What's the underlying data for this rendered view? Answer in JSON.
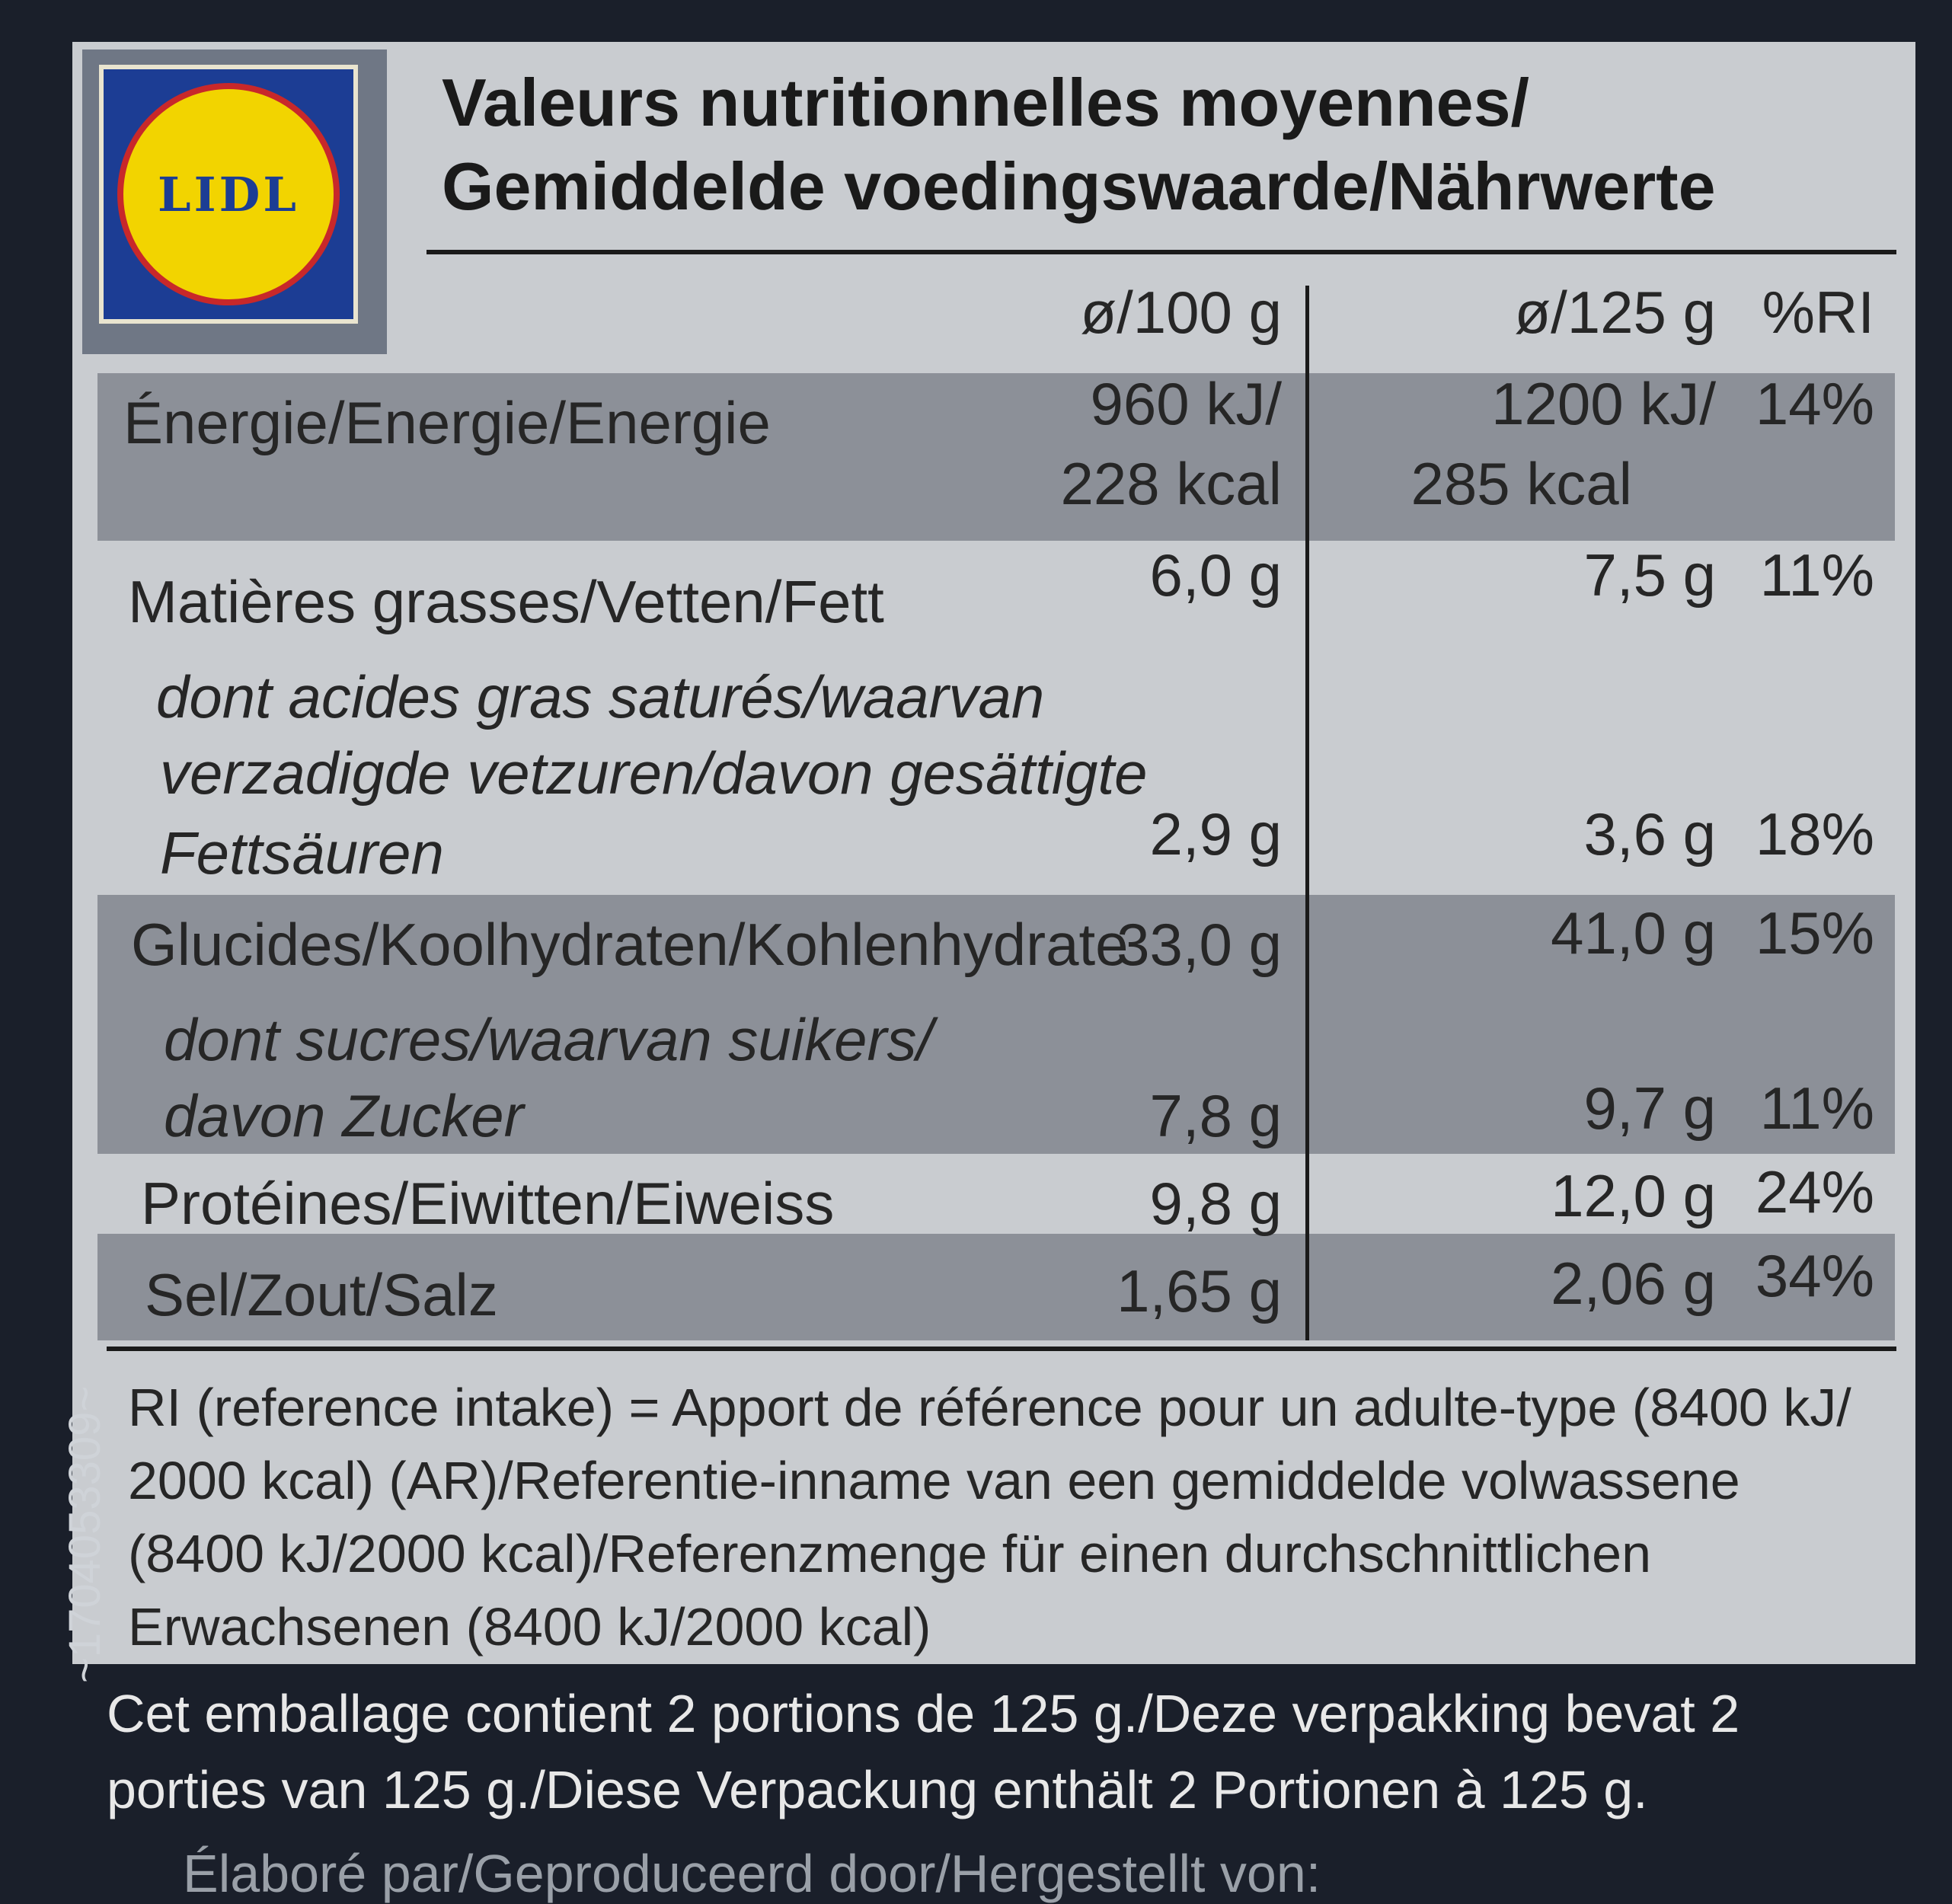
{
  "brand": {
    "logo_text": "LIDL",
    "colors": {
      "blue": "#1c3d94",
      "yellow": "#f2d400",
      "red": "#c8282a"
    }
  },
  "title": {
    "line1": "Valeurs nutritionnelles moyennes/",
    "line2": "Gemiddelde voedingswaarde/Nährwerte"
  },
  "columns": {
    "per100": "ø/100 g",
    "per125": "ø/125 g",
    "ri": "%RI"
  },
  "rows": {
    "energy": {
      "label": "Énergie/Energie/Energie",
      "v100_kj": "960 kJ/",
      "v100_kcal": "228 kcal",
      "v125_kj": "1200 kJ/",
      "v125_kcal": "285 kcal",
      "ri": "14%"
    },
    "fat": {
      "label": "Matières grasses/Vetten/Fett",
      "v100": "6,0 g",
      "v125": "7,5 g",
      "ri": "11%"
    },
    "saturates": {
      "label1": "dont acides gras saturés/waarvan",
      "label2": "verzadigde vetzuren/davon gesättigte",
      "label3": "Fettsäuren",
      "v100": "2,9 g",
      "v125": "3,6 g",
      "ri": "18%"
    },
    "carbs": {
      "label": "Glucides/Koolhydraten/Kohlenhydrate",
      "v100": "33,0 g",
      "v125": "41,0 g",
      "ri": "15%"
    },
    "sugars": {
      "label1": "dont sucres/waarvan suikers/",
      "label2": "davon Zucker",
      "v100": "7,8 g",
      "v125": "9,7 g",
      "ri": "11%"
    },
    "protein": {
      "label": "Protéines/Eiwitten/Eiweiss",
      "v100": "9,8 g",
      "v125": "12,0 g",
      "ri": "24%"
    },
    "salt": {
      "label": "Sel/Zout/Salz",
      "v100": "1,65 g",
      "v125": "2,06 g",
      "ri": "34%"
    }
  },
  "ri_note": "RI (reference intake) = Apport de référence pour un adulte-type (8400 kJ/\n2000 kcal) (AR)/Referentie-inname van een gemiddelde volwassene\n(8400 kJ/2000 kcal)/Referenzmenge für einen durchschnittlichen\nErwachsenen (8400 kJ/2000 kcal)",
  "footer": "Cet emballage contient 2 portions de 125 g./Deze verpakking bevat 2\nporties van 125 g./Diese Verpackung enthält 2 Portionen à 125 g.",
  "footer_cut": "Élaboré par/Geproduceerd door/Hergestellt von:",
  "side_code": "~1704053309~"
}
